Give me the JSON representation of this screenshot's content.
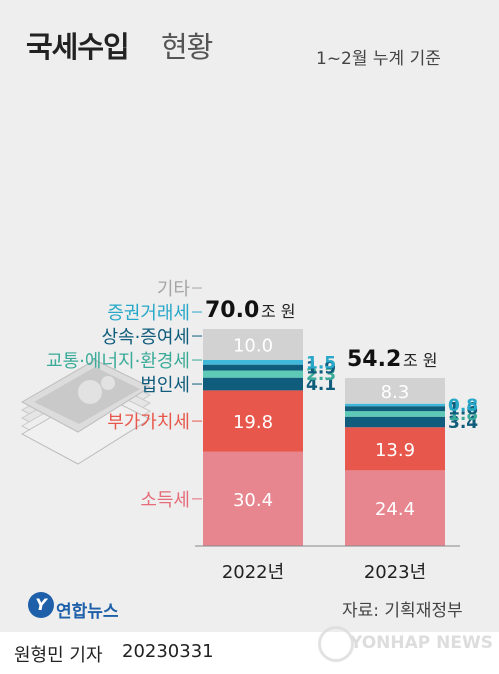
{
  "title": "국세수입",
  "title_suffix": "현황",
  "basis_note": "1~2월 누계 기준",
  "source": "자료: 기획재정부",
  "brand": "연합뉴스",
  "brand_mark": "Y",
  "reporter": "원형민 기자",
  "date": "20230331",
  "watermark": "YONHAP NEWS",
  "chart_data": {
    "type": "bar",
    "stacked": true,
    "unit": "조 원",
    "categories": [
      "2022년",
      "2023년"
    ],
    "totals": [
      70.0,
      54.2
    ],
    "total_labels": [
      "70.0",
      "54.2"
    ],
    "series": [
      {
        "name": "소득세",
        "values": [
          30.4,
          24.4
        ],
        "labels": [
          "30.4",
          "24.4"
        ],
        "color": "#e8868f",
        "label_color": "#e56c78"
      },
      {
        "name": "부가가치세",
        "values": [
          19.8,
          13.9
        ],
        "labels": [
          "19.8",
          "13.9"
        ],
        "color": "#e8574b",
        "label_color": "#e8574b"
      },
      {
        "name": "법인세",
        "values": [
          4.1,
          3.4
        ],
        "labels": [
          "4.1",
          "3.4"
        ],
        "color": "#0f5c7c",
        "label_color": "#0f5c7c"
      },
      {
        "name": "교통·에너지·환경세",
        "values": [
          2.3,
          1.8
        ],
        "labels": [
          "2.3",
          "1.8"
        ],
        "color": "#5dc9b6",
        "label_color": "#3aab98"
      },
      {
        "name": "상속·증여세",
        "values": [
          1.9,
          1.6
        ],
        "labels": [
          "1.9",
          "1.6"
        ],
        "color": "#0f5c7c",
        "label_color": "#0f5c7c"
      },
      {
        "name": "증권거래세",
        "values": [
          1.5,
          0.8
        ],
        "labels": [
          "1.5",
          "0.8"
        ],
        "color": "#3fb8d9",
        "label_color": "#28a8c8"
      },
      {
        "name": "기타",
        "values": [
          10.0,
          8.3
        ],
        "labels": [
          "10.0",
          "8.3"
        ],
        "color": "#d2d2d2",
        "label_color": "#a5a5a5"
      }
    ]
  }
}
